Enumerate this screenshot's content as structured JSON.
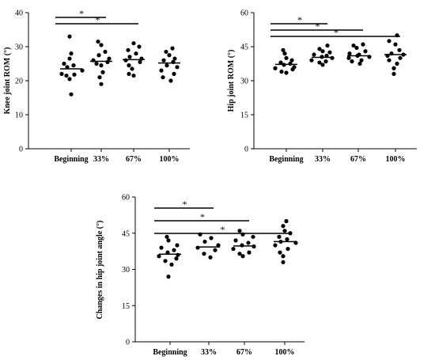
{
  "chart_data": [
    {
      "type": "scatter",
      "ylabel": "Knee joint ROM (°)",
      "ylim": [
        0,
        40
      ],
      "yticks": [
        0,
        10,
        20,
        30,
        40
      ],
      "categories": [
        "Beginning",
        "33%",
        "67%",
        "100%"
      ],
      "points": [
        [
          16.0,
          20.5,
          21.5,
          21.8,
          22.0,
          23.0,
          24.0,
          24.5,
          25.0,
          26.5,
          28.0,
          33.0
        ],
        [
          19.0,
          21.0,
          22.5,
          24.5,
          25.0,
          25.5,
          26.0,
          26.5,
          27.5,
          28.5,
          30.5,
          31.5
        ],
        [
          21.5,
          22.0,
          23.5,
          24.5,
          25.5,
          26.0,
          26.5,
          27.0,
          28.0,
          29.0,
          30.0,
          31.0
        ],
        [
          20.0,
          21.0,
          22.0,
          23.0,
          24.0,
          24.5,
          25.5,
          26.0,
          26.5,
          27.5,
          28.5,
          29.5
        ]
      ],
      "means": [
        23.5,
        25.7,
        26.2,
        25.2
      ],
      "significance": [
        {
          "from": 0,
          "to": 1,
          "label": "*"
        },
        {
          "from": 0,
          "to": 2,
          "label": "*"
        }
      ]
    },
    {
      "type": "scatter",
      "ylabel": "Hip joint ROM (°)",
      "ylim": [
        0,
        60
      ],
      "yticks": [
        0,
        15,
        30,
        45,
        60
      ],
      "categories": [
        "Beginning",
        "33%",
        "67%",
        "100%"
      ],
      "points": [
        [
          33.5,
          34.0,
          35.0,
          35.5,
          36.0,
          37.0,
          37.5,
          38.0,
          39.0,
          40.0,
          42.0,
          43.5
        ],
        [
          37.0,
          38.0,
          38.5,
          39.0,
          40.0,
          40.5,
          41.0,
          41.5,
          42.5,
          43.0,
          44.0,
          45.5
        ],
        [
          37.5,
          38.5,
          39.0,
          40.0,
          40.5,
          41.0,
          41.5,
          42.0,
          43.0,
          44.5,
          45.5,
          46.0
        ],
        [
          33.0,
          35.5,
          37.5,
          39.0,
          40.0,
          41.0,
          41.5,
          42.0,
          43.5,
          46.0,
          47.5,
          50.0
        ]
      ],
      "means": [
        37.2,
        40.3,
        41.0,
        41.5
      ],
      "significance": [
        {
          "from": 0,
          "to": 1,
          "label": "*"
        },
        {
          "from": 0,
          "to": 2,
          "label": "*"
        },
        {
          "from": 0,
          "to": 3,
          "label": "*"
        }
      ]
    },
    {
      "type": "scatter",
      "ylabel": "Changes in hip joint angle (°)",
      "ylim": [
        0,
        60
      ],
      "yticks": [
        0,
        15,
        30,
        45,
        60
      ],
      "categories": [
        "Beginning",
        "33%",
        "67%",
        "100%"
      ],
      "points": [
        [
          27.0,
          32.0,
          33.5,
          34.5,
          35.5,
          36.0,
          37.0,
          38.0,
          39.0,
          40.0,
          42.0,
          43.5
        ],
        [
          35.0,
          36.5,
          38.0,
          39.0,
          40.0,
          41.5,
          43.0,
          44.5
        ],
        [
          35.5,
          36.5,
          37.0,
          38.5,
          39.5,
          40.0,
          41.0,
          42.0,
          43.5,
          44.5,
          46.0
        ],
        [
          33.0,
          35.5,
          37.0,
          38.5,
          40.0,
          41.0,
          41.5,
          42.5,
          43.5,
          45.0,
          46.0,
          48.0,
          50.0
        ]
      ],
      "means": [
        36.3,
        39.3,
        39.7,
        41.5
      ],
      "significance": [
        {
          "from": 0,
          "to": 1,
          "label": "*"
        },
        {
          "from": 0,
          "to": 2,
          "label": "*"
        },
        {
          "from": 0,
          "to": 3,
          "label": "*"
        }
      ]
    }
  ]
}
